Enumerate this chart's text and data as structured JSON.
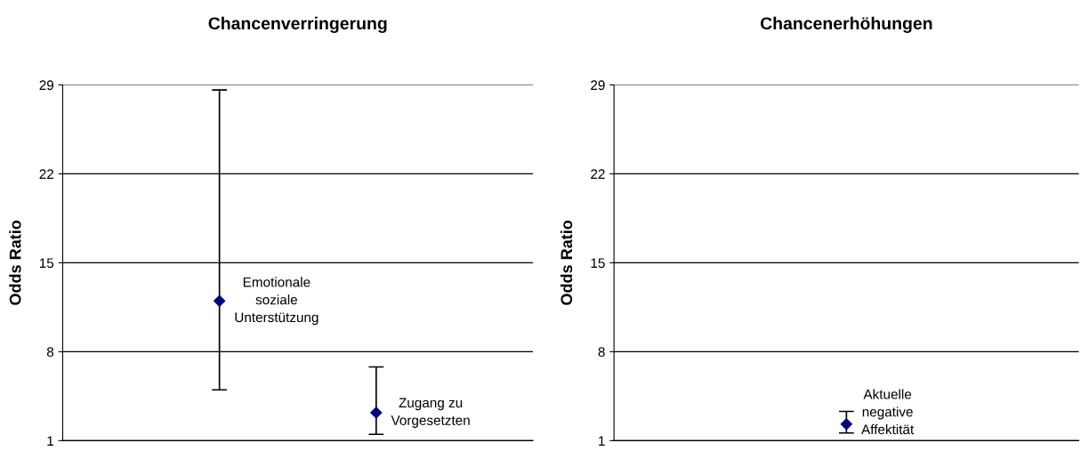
{
  "chart_data": [
    {
      "type": "scatter",
      "title": "Chancenverringerung",
      "ylabel": "Odds Ratio",
      "categories": [
        null,
        null
      ],
      "series": [
        {
          "color": "#000080",
          "values": [
            12.0,
            3.2
          ],
          "errors": [
            [
              5.0,
              28.6
            ],
            [
              1.5,
              6.8
            ]
          ]
        }
      ],
      "marker": "diamond",
      "ylim": [
        1,
        29
      ],
      "yticks": [
        1,
        8,
        15,
        22,
        29
      ],
      "grid": "y",
      "tick_labels": "y",
      "annotations": [
        "Emotionale\nsoziale\nUnterstützung",
        "Zugang zu\nVorgesetzten"
      ]
    },
    {
      "type": "scatter",
      "title": "Chancenerhöhungen",
      "ylabel": "Odds Ratio",
      "categories": [
        null
      ],
      "series": [
        {
          "color": "#000080",
          "values": [
            2.3
          ],
          "errors": [
            [
              1.6,
              3.3
            ]
          ]
        }
      ],
      "marker": "diamond",
      "ylim": [
        1,
        29
      ],
      "yticks": [
        1,
        8,
        15,
        22,
        29
      ],
      "grid": "y",
      "tick_labels": "y",
      "annotations": [
        "Aktuelle\nnegative\nAffektität"
      ]
    }
  ]
}
